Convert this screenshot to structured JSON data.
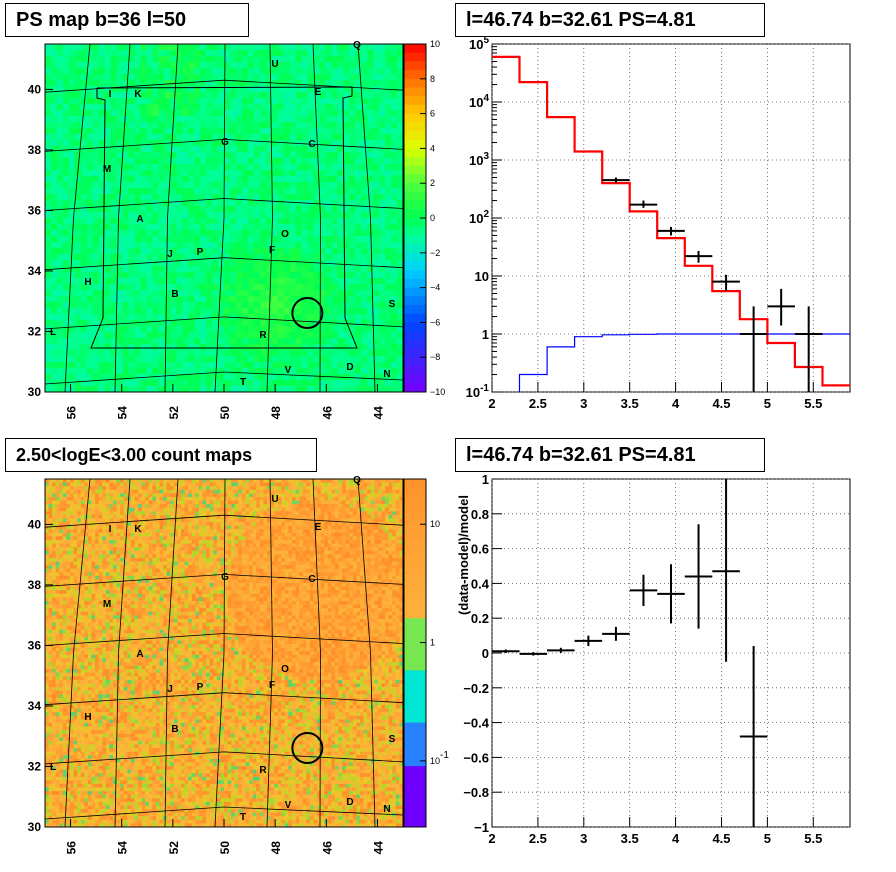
{
  "titles": {
    "map1": "PS map b=36 l=50",
    "spec1": "l=46.74 b=32.61 PS=4.81",
    "map2": "2.50<logE<3.00 count maps",
    "spec2": "l=46.74 b=32.61 PS=4.81"
  },
  "map_axes": {
    "x_ticks": [
      "56",
      "54",
      "52",
      "50",
      "48",
      "46",
      "44"
    ],
    "y_ticks": [
      "30",
      "32",
      "34",
      "36",
      "38",
      "40"
    ]
  },
  "source_labels": [
    "Q",
    "U",
    "I",
    "K",
    "E",
    "G",
    "C",
    "M",
    "A",
    "O",
    "J",
    "P",
    "F",
    "H",
    "B",
    "S",
    "L",
    "R",
    "D",
    "V",
    "T",
    "N"
  ],
  "map1_colorbar": {
    "ticks": [
      "10",
      "8",
      "6",
      "4",
      "2",
      "0",
      "−2",
      "−4",
      "−6",
      "−8",
      "−10"
    ]
  },
  "map2_colorbar": {
    "ticks": [
      "10",
      "1",
      "10^-1"
    ]
  },
  "colors": {
    "model": "#ff0000",
    "background": "#0000ff",
    "data": "#000000"
  },
  "chart_data": [
    {
      "type": "heatmap",
      "title": "PS map b=36 l=50",
      "xlabel": "",
      "ylabel": "",
      "x_range": [
        57,
        43
      ],
      "y_range": [
        30,
        41.5
      ],
      "z_range": [
        -10,
        10
      ],
      "marker_circle": {
        "l": 46.74,
        "b": 32.61
      }
    },
    {
      "type": "line",
      "title": "l=46.74 b=32.61 PS=4.81",
      "xlabel": "",
      "ylabel": "",
      "xlim": [
        2,
        5.9
      ],
      "ylim": [
        0.1,
        100000
      ],
      "log_y": true,
      "y_ticks": [
        "10^-1",
        "1",
        "10",
        "10^2",
        "10^3",
        "10^4",
        "10^5"
      ],
      "x_ticks": [
        "2",
        "2.5",
        "3",
        "3.5",
        "4",
        "4.5",
        "5",
        "5.5"
      ],
      "series": [
        {
          "style": "step",
          "bin_edges": [
            2.0,
            2.3,
            2.6,
            2.9,
            3.2,
            3.5,
            3.8,
            4.1,
            4.4,
            4.7,
            5.0,
            5.3,
            5.6,
            5.9
          ],
          "values": [
            60000,
            22000,
            5500,
            1400,
            400,
            130,
            45,
            15,
            5.5,
            1.8,
            0.7,
            0.27,
            0.13
          ]
        },
        {
          "style": "step",
          "bin_edges": [
            2.0,
            2.3,
            2.6,
            2.9,
            3.2,
            3.5,
            3.8,
            4.1,
            4.4,
            4.7,
            5.0,
            5.3,
            5.6,
            5.9
          ],
          "values": [
            0.05,
            0.2,
            0.6,
            0.9,
            0.97,
            0.99,
            1.0,
            1.0,
            1.0,
            1.0,
            1.0,
            1.0,
            1.0
          ]
        },
        {
          "style": "errorbar",
          "x": [
            3.35,
            3.65,
            3.95,
            4.25,
            4.55,
            4.85,
            5.15,
            5.45
          ],
          "xerr": [
            0.15,
            0.15,
            0.15,
            0.15,
            0.15,
            0.15,
            0.15,
            0.15
          ],
          "y": [
            450,
            170,
            60,
            22,
            8,
            1,
            3,
            1
          ],
          "ylo": [
            400,
            150,
            50,
            17,
            5.5,
            0.1,
            1.4,
            0.1
          ],
          "yhi": [
            500,
            200,
            70,
            27,
            10.5,
            3,
            6,
            3
          ]
        }
      ]
    },
    {
      "type": "heatmap",
      "title": "2.50<logE<3.00 count maps",
      "xlabel": "",
      "ylabel": "",
      "x_range": [
        57,
        43
      ],
      "y_range": [
        30,
        41.5
      ],
      "z_range": [
        0.03,
        30
      ],
      "log_z": true,
      "marker_circle": {
        "l": 46.74,
        "b": 32.61
      }
    },
    {
      "type": "scatter",
      "title": "l=46.74 b=32.61 PS=4.81",
      "xlabel": "",
      "ylabel": "(data-model)/model",
      "xlim": [
        2,
        5.9
      ],
      "ylim": [
        -1,
        1
      ],
      "x_ticks": [
        "2",
        "2.5",
        "3",
        "3.5",
        "4",
        "4.5",
        "5",
        "5.5"
      ],
      "y_ticks": [
        "−1",
        "−0.8",
        "−0.6",
        "−0.4",
        "−0.2",
        "0",
        "0.2",
        "0.4",
        "0.6",
        "0.8",
        "1"
      ],
      "x": [
        2.15,
        2.45,
        2.75,
        3.05,
        3.35,
        3.65,
        3.95,
        4.25,
        4.55,
        4.85
      ],
      "xerr": [
        0.15,
        0.15,
        0.15,
        0.15,
        0.15,
        0.15,
        0.15,
        0.15,
        0.15,
        0.15
      ],
      "y": [
        0.01,
        -0.005,
        0.015,
        0.07,
        0.11,
        0.36,
        0.34,
        0.44,
        0.47,
        -0.48
      ],
      "ylo": [
        0.0,
        -0.015,
        0.0,
        0.04,
        0.07,
        0.27,
        0.17,
        0.14,
        -0.05,
        -1.0
      ],
      "yhi": [
        0.02,
        0.005,
        0.03,
        0.1,
        0.15,
        0.45,
        0.51,
        0.74,
        1.0,
        0.04
      ]
    }
  ]
}
